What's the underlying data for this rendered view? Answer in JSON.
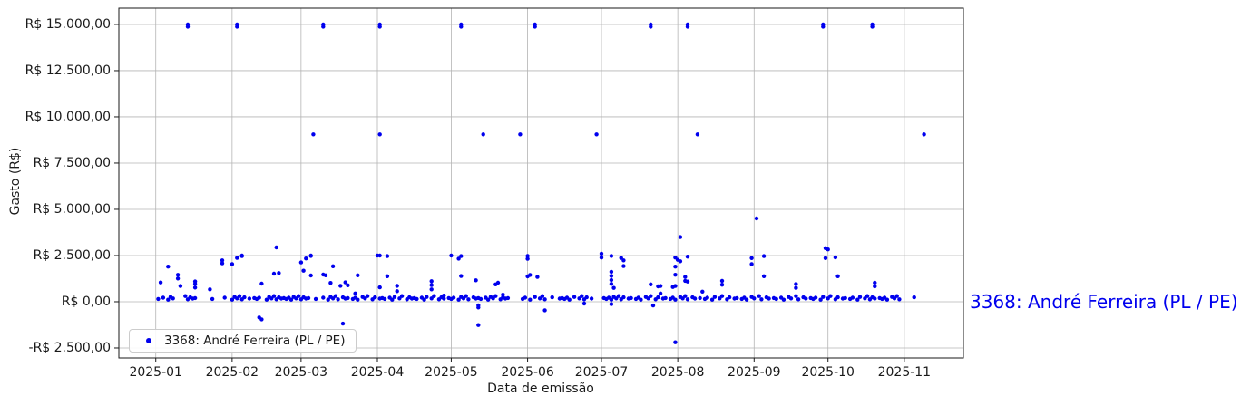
{
  "figure": {
    "background": "#ffffff",
    "right_series_label": "3368: André Ferreira (PL / PE)"
  },
  "colors": {
    "series_blue": "#0000EE",
    "grid": "#b4b4b4",
    "spine": "#1a1a1a",
    "tick_text": "#1a1a1a"
  },
  "chart_data": {
    "type": "scatter",
    "title": "",
    "xlabel": "Data de emissão",
    "ylabel": "Gasto (R$)",
    "grid": true,
    "legend_position": "lower left",
    "series": [
      {
        "name": "3368: André Ferreira (PL / PE)",
        "color": "#0000EE",
        "marker": "dot"
      }
    ],
    "x_unit": "days_since_2025-01-01",
    "x_domain_days": [
      -15,
      328
    ],
    "ylim": [
      -3040,
      15880
    ],
    "x_ticks": [
      {
        "day": 0,
        "label": "2025-01"
      },
      {
        "day": 31,
        "label": "2025-02"
      },
      {
        "day": 59,
        "label": "2025-03"
      },
      {
        "day": 90,
        "label": "2025-04"
      },
      {
        "day": 120,
        "label": "2025-05"
      },
      {
        "day": 151,
        "label": "2025-06"
      },
      {
        "day": 181,
        "label": "2025-07"
      },
      {
        "day": 212,
        "label": "2025-08"
      },
      {
        "day": 243,
        "label": "2025-09"
      },
      {
        "day": 273,
        "label": "2025-10"
      },
      {
        "day": 304,
        "label": "2025-11"
      }
    ],
    "y_ticks": [
      {
        "value": 15000,
        "label": "R$ 15.000,00"
      },
      {
        "value": 12500,
        "label": "R$ 12.500,00"
      },
      {
        "value": 10000,
        "label": "R$ 10.000,00"
      },
      {
        "value": 7500,
        "label": "R$ 7.500,00"
      },
      {
        "value": 5000,
        "label": "R$ 5.000,00"
      },
      {
        "value": 2500,
        "label": "R$ 2.500,00"
      },
      {
        "value": 0,
        "label": "R$ 0,00"
      },
      {
        "value": -2500,
        "label": "-R$ 2.500,00"
      }
    ],
    "points": [
      [
        13,
        15000
      ],
      [
        13,
        14880
      ],
      [
        33,
        15000
      ],
      [
        33,
        14880
      ],
      [
        68,
        15000
      ],
      [
        68,
        14880
      ],
      [
        91,
        15000
      ],
      [
        91,
        14880
      ],
      [
        124,
        15000
      ],
      [
        124,
        14880
      ],
      [
        154,
        15000
      ],
      [
        154,
        14880
      ],
      [
        201,
        15000
      ],
      [
        201,
        14880
      ],
      [
        216,
        15000
      ],
      [
        216,
        14880
      ],
      [
        271,
        15000
      ],
      [
        271,
        14880
      ],
      [
        291,
        15000
      ],
      [
        291,
        14880
      ],
      [
        64,
        9050
      ],
      [
        91,
        9050
      ],
      [
        133,
        9050
      ],
      [
        148,
        9050
      ],
      [
        179,
        9050
      ],
      [
        220,
        9050
      ],
      [
        312,
        9050
      ],
      [
        244,
        4510
      ],
      [
        213,
        3500
      ],
      [
        49,
        2940
      ],
      [
        272,
        2900
      ],
      [
        273,
        2830
      ],
      [
        27,
        2240
      ],
      [
        27,
        2075
      ],
      [
        31,
        2040
      ],
      [
        33,
        2370
      ],
      [
        35,
        2500
      ],
      [
        35,
        2470
      ],
      [
        59,
        2125
      ],
      [
        61,
        2340
      ],
      [
        63,
        2500
      ],
      [
        63,
        2480
      ],
      [
        90,
        2500
      ],
      [
        91,
        2500
      ],
      [
        94,
        2470
      ],
      [
        120,
        2500
      ],
      [
        123,
        2330
      ],
      [
        124,
        2470
      ],
      [
        151,
        2480
      ],
      [
        151,
        2320
      ],
      [
        181,
        2600
      ],
      [
        181,
        2390
      ],
      [
        185,
        2480
      ],
      [
        189,
        2370
      ],
      [
        190,
        2240
      ],
      [
        211,
        2390
      ],
      [
        212,
        2270
      ],
      [
        213,
        2190
      ],
      [
        216,
        2440
      ],
      [
        242,
        2360
      ],
      [
        242,
        2040
      ],
      [
        247,
        2470
      ],
      [
        272,
        2360
      ],
      [
        276,
        2400
      ],
      [
        2,
        1045
      ],
      [
        5,
        1900
      ],
      [
        9,
        1456
      ],
      [
        9,
        1260
      ],
      [
        10,
        850
      ],
      [
        16,
        1095
      ],
      [
        16,
        965
      ],
      [
        16,
        770
      ],
      [
        22,
        670
      ],
      [
        43,
        980
      ],
      [
        48,
        1520
      ],
      [
        50,
        1555
      ],
      [
        60,
        1680
      ],
      [
        63,
        1420
      ],
      [
        68,
        1470
      ],
      [
        69,
        1430
      ],
      [
        71,
        1020
      ],
      [
        72,
        1920
      ],
      [
        75,
        860
      ],
      [
        77,
        1050
      ],
      [
        78,
        890
      ],
      [
        81,
        450
      ],
      [
        82,
        1430
      ],
      [
        91,
        780
      ],
      [
        94,
        1380
      ],
      [
        98,
        860
      ],
      [
        98,
        570
      ],
      [
        112,
        1110
      ],
      [
        112,
        900
      ],
      [
        112,
        670
      ],
      [
        117,
        330
      ],
      [
        124,
        1390
      ],
      [
        130,
        1160
      ],
      [
        138,
        940
      ],
      [
        139,
        1030
      ],
      [
        141,
        380
      ],
      [
        151,
        1370
      ],
      [
        152,
        1450
      ],
      [
        155,
        1340
      ],
      [
        185,
        1620
      ],
      [
        185,
        1400
      ],
      [
        185,
        1175
      ],
      [
        185,
        965
      ],
      [
        186,
        750
      ],
      [
        190,
        1930
      ],
      [
        201,
        940
      ],
      [
        204,
        830
      ],
      [
        205,
        850
      ],
      [
        205,
        450
      ],
      [
        210,
        800
      ],
      [
        211,
        1900
      ],
      [
        211,
        1460
      ],
      [
        211,
        850
      ],
      [
        215,
        1340
      ],
      [
        215,
        1130
      ],
      [
        216,
        1090
      ],
      [
        222,
        550
      ],
      [
        230,
        1130
      ],
      [
        230,
        920
      ],
      [
        247,
        1380
      ],
      [
        260,
        960
      ],
      [
        260,
        750
      ],
      [
        277,
        1380
      ],
      [
        292,
        1030
      ],
      [
        292,
        830
      ],
      [
        42,
        -850
      ],
      [
        43,
        -950
      ],
      [
        76,
        -1180
      ],
      [
        131,
        -190
      ],
      [
        131,
        -310
      ],
      [
        131,
        -1260
      ],
      [
        158,
        -460
      ],
      [
        174,
        -100
      ],
      [
        185,
        -130
      ],
      [
        202,
        -200
      ],
      [
        211,
        -2190
      ],
      [
        1,
        150
      ],
      [
        3,
        220
      ],
      [
        5,
        110
      ],
      [
        6,
        260
      ],
      [
        7,
        180
      ],
      [
        12,
        310
      ],
      [
        13,
        130
      ],
      [
        14,
        240
      ],
      [
        15,
        170
      ],
      [
        16,
        200
      ],
      [
        23,
        150
      ],
      [
        28,
        220
      ],
      [
        31,
        110
      ],
      [
        32,
        260
      ],
      [
        33,
        180
      ],
      [
        34,
        310
      ],
      [
        35,
        130
      ],
      [
        36,
        240
      ],
      [
        38,
        170
      ],
      [
        40,
        200
      ],
      [
        41,
        150
      ],
      [
        42,
        220
      ],
      [
        45,
        110
      ],
      [
        46,
        260
      ],
      [
        47,
        180
      ],
      [
        48,
        310
      ],
      [
        49,
        130
      ],
      [
        50,
        240
      ],
      [
        51,
        170
      ],
      [
        52,
        200
      ],
      [
        53,
        150
      ],
      [
        54,
        220
      ],
      [
        55,
        110
      ],
      [
        56,
        260
      ],
      [
        57,
        180
      ],
      [
        58,
        310
      ],
      [
        59,
        130
      ],
      [
        60,
        240
      ],
      [
        61,
        170
      ],
      [
        62,
        200
      ],
      [
        65,
        150
      ],
      [
        68,
        220
      ],
      [
        70,
        110
      ],
      [
        71,
        260
      ],
      [
        72,
        180
      ],
      [
        73,
        310
      ],
      [
        74,
        130
      ],
      [
        76,
        240
      ],
      [
        77,
        170
      ],
      [
        78,
        200
      ],
      [
        80,
        150
      ],
      [
        81,
        220
      ],
      [
        82,
        110
      ],
      [
        84,
        260
      ],
      [
        85,
        180
      ],
      [
        86,
        310
      ],
      [
        88,
        130
      ],
      [
        89,
        240
      ],
      [
        91,
        170
      ],
      [
        92,
        200
      ],
      [
        93,
        150
      ],
      [
        95,
        220
      ],
      [
        96,
        110
      ],
      [
        97,
        260
      ],
      [
        99,
        180
      ],
      [
        100,
        310
      ],
      [
        102,
        130
      ],
      [
        103,
        240
      ],
      [
        104,
        170
      ],
      [
        105,
        200
      ],
      [
        106,
        150
      ],
      [
        108,
        220
      ],
      [
        109,
        110
      ],
      [
        110,
        260
      ],
      [
        112,
        180
      ],
      [
        113,
        310
      ],
      [
        115,
        130
      ],
      [
        116,
        240
      ],
      [
        117,
        170
      ],
      [
        119,
        200
      ],
      [
        120,
        150
      ],
      [
        121,
        220
      ],
      [
        123,
        110
      ],
      [
        124,
        260
      ],
      [
        125,
        180
      ],
      [
        126,
        310
      ],
      [
        127,
        130
      ],
      [
        129,
        240
      ],
      [
        130,
        170
      ],
      [
        131,
        200
      ],
      [
        132,
        150
      ],
      [
        134,
        220
      ],
      [
        135,
        110
      ],
      [
        136,
        260
      ],
      [
        137,
        180
      ],
      [
        138,
        310
      ],
      [
        140,
        130
      ],
      [
        141,
        240
      ],
      [
        142,
        170
      ],
      [
        143,
        200
      ],
      [
        149,
        150
      ],
      [
        150,
        220
      ],
      [
        152,
        110
      ],
      [
        154,
        260
      ],
      [
        156,
        180
      ],
      [
        157,
        310
      ],
      [
        158,
        130
      ],
      [
        161,
        240
      ],
      [
        164,
        170
      ],
      [
        165,
        200
      ],
      [
        166,
        150
      ],
      [
        167,
        220
      ],
      [
        168,
        110
      ],
      [
        170,
        260
      ],
      [
        172,
        180
      ],
      [
        173,
        310
      ],
      [
        174,
        130
      ],
      [
        175,
        240
      ],
      [
        177,
        170
      ],
      [
        182,
        200
      ],
      [
        183,
        150
      ],
      [
        184,
        220
      ],
      [
        185,
        110
      ],
      [
        186,
        260
      ],
      [
        187,
        180
      ],
      [
        188,
        310
      ],
      [
        189,
        130
      ],
      [
        190,
        240
      ],
      [
        192,
        170
      ],
      [
        193,
        200
      ],
      [
        195,
        150
      ],
      [
        196,
        220
      ],
      [
        197,
        110
      ],
      [
        199,
        260
      ],
      [
        200,
        180
      ],
      [
        201,
        310
      ],
      [
        203,
        130
      ],
      [
        204,
        240
      ],
      [
        206,
        170
      ],
      [
        207,
        200
      ],
      [
        209,
        150
      ],
      [
        210,
        220
      ],
      [
        211,
        110
      ],
      [
        213,
        260
      ],
      [
        214,
        180
      ],
      [
        215,
        310
      ],
      [
        216,
        130
      ],
      [
        218,
        240
      ],
      [
        219,
        170
      ],
      [
        221,
        200
      ],
      [
        223,
        150
      ],
      [
        224,
        220
      ],
      [
        226,
        110
      ],
      [
        227,
        260
      ],
      [
        229,
        180
      ],
      [
        230,
        310
      ],
      [
        232,
        130
      ],
      [
        233,
        240
      ],
      [
        235,
        170
      ],
      [
        236,
        200
      ],
      [
        238,
        150
      ],
      [
        239,
        220
      ],
      [
        240,
        110
      ],
      [
        242,
        260
      ],
      [
        243,
        180
      ],
      [
        245,
        310
      ],
      [
        246,
        130
      ],
      [
        248,
        240
      ],
      [
        249,
        170
      ],
      [
        251,
        200
      ],
      [
        252,
        150
      ],
      [
        254,
        220
      ],
      [
        255,
        110
      ],
      [
        257,
        260
      ],
      [
        258,
        180
      ],
      [
        260,
        310
      ],
      [
        261,
        130
      ],
      [
        263,
        240
      ],
      [
        264,
        170
      ],
      [
        266,
        200
      ],
      [
        267,
        150
      ],
      [
        268,
        220
      ],
      [
        270,
        110
      ],
      [
        271,
        260
      ],
      [
        273,
        180
      ],
      [
        274,
        310
      ],
      [
        276,
        130
      ],
      [
        277,
        240
      ],
      [
        279,
        170
      ],
      [
        280,
        200
      ],
      [
        282,
        150
      ],
      [
        283,
        220
      ],
      [
        285,
        110
      ],
      [
        286,
        260
      ],
      [
        288,
        180
      ],
      [
        289,
        310
      ],
      [
        290,
        130
      ],
      [
        291,
        240
      ],
      [
        292,
        170
      ],
      [
        294,
        200
      ],
      [
        295,
        150
      ],
      [
        296,
        220
      ],
      [
        297,
        110
      ],
      [
        299,
        260
      ],
      [
        300,
        180
      ],
      [
        301,
        310
      ],
      [
        302,
        130
      ],
      [
        308,
        240
      ]
    ]
  }
}
